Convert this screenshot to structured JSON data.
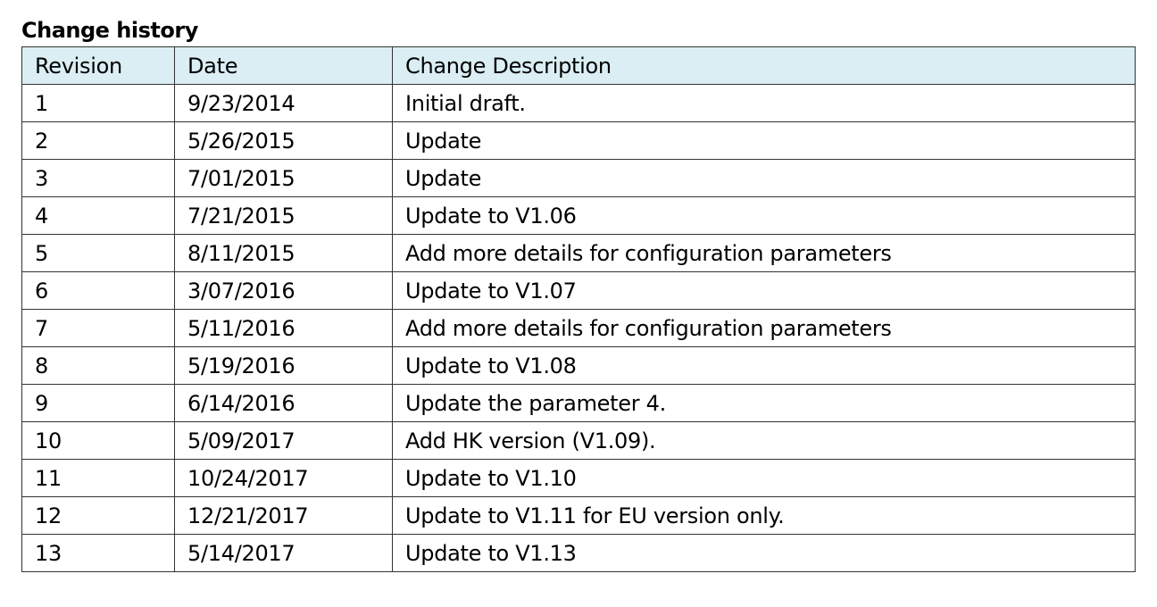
{
  "title": "Change history",
  "table": {
    "headers": [
      "Revision",
      "Date",
      "Change Description"
    ],
    "header_bg": "#daeef3",
    "rows": [
      [
        "1",
        "9/23/2014",
        "Initial draft."
      ],
      [
        "2",
        "5/26/2015",
        "Update"
      ],
      [
        "3",
        "7/01/2015",
        "Update"
      ],
      [
        "4",
        "7/21/2015",
        "Update to V1.06"
      ],
      [
        "5",
        "8/11/2015",
        "Add more details for configuration parameters"
      ],
      [
        "6",
        "3/07/2016",
        "Update to V1.07"
      ],
      [
        "7",
        "5/11/2016",
        "Add more details for configuration parameters"
      ],
      [
        "8",
        "5/19/2016",
        "Update to V1.08"
      ],
      [
        "9",
        "6/14/2016",
        "Update the parameter 4."
      ],
      [
        "10",
        "5/09/2017",
        "Add HK version (V1.09)."
      ],
      [
        "11",
        "10/24/2017",
        "Update to V1.10"
      ],
      [
        "12",
        "12/21/2017",
        "Update to V1.11 for EU version only."
      ],
      [
        "13",
        "5/14/2017",
        "Update to V1.13"
      ]
    ]
  }
}
